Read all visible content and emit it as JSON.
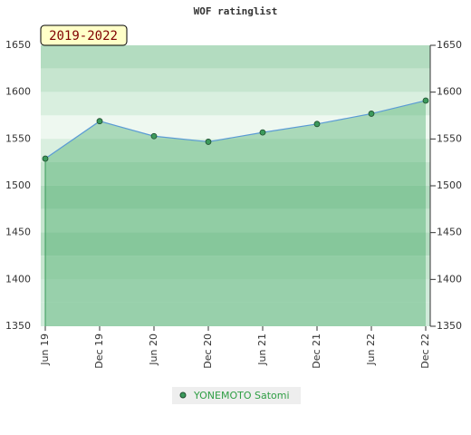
{
  "chart_data": {
    "type": "area",
    "title": "WOF ratinglist",
    "annotation": "2019-2022",
    "categories": [
      "Jun 19",
      "Dec 19",
      "Jun 20",
      "Dec 20",
      "Jun 21",
      "Dec 21",
      "Jun 22",
      "Dec 22"
    ],
    "series": [
      {
        "name": "YONEMOTO Satomi",
        "color": "#5b9bd5",
        "values": [
          1529,
          1569,
          1553,
          1547,
          1557,
          1566,
          1577,
          1591
        ]
      }
    ],
    "ylim": [
      1350,
      1650
    ],
    "yticks": [
      1350,
      1400,
      1450,
      1500,
      1550,
      1600,
      1650
    ],
    "y2lim": [
      1350,
      1650
    ],
    "y2ticks": [
      1350,
      1400,
      1450,
      1500,
      1550,
      1600,
      1650
    ]
  }
}
